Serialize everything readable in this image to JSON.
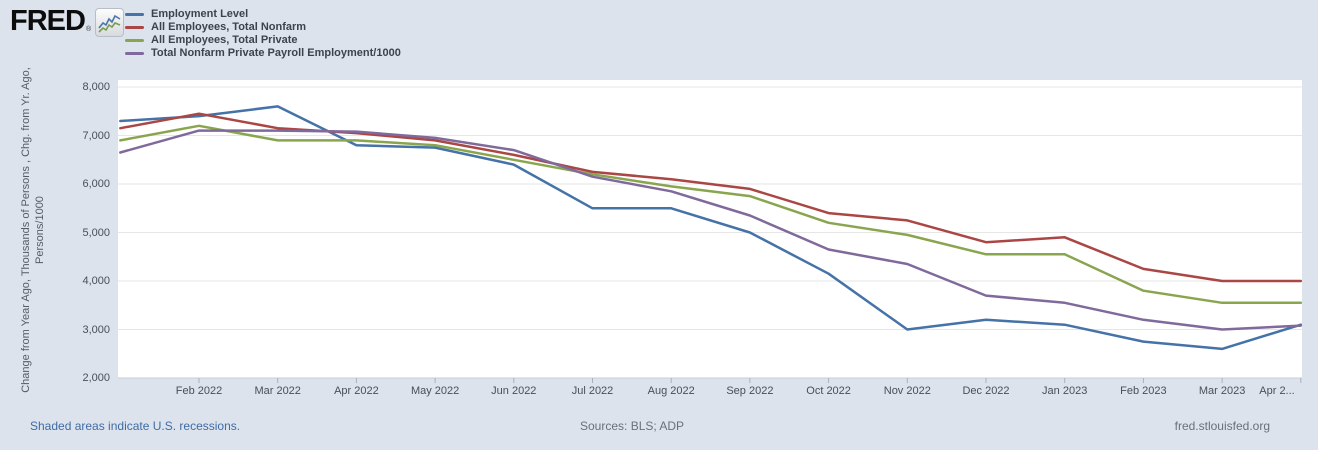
{
  "logo": {
    "text": "FRED",
    "registered_mark": "®"
  },
  "y_axis": {
    "label": "Change from Year Ago, Thousands of Persons , Chg. from Yr. Ago, Persons/1000",
    "tick_labels": [
      "8,000",
      "7,000",
      "6,000",
      "5,000",
      "4,000",
      "3,000",
      "2,000"
    ]
  },
  "x_axis": {
    "tick_labels": [
      "Feb 2022",
      "Mar 2022",
      "Apr 2022",
      "May 2022",
      "Jun 2022",
      "Jul 2022",
      "Aug 2022",
      "Sep 2022",
      "Oct 2022",
      "Nov 2022",
      "Dec 2022",
      "Jan 2023",
      "Feb 2023",
      "Mar 2023",
      "Apr 2..."
    ]
  },
  "footer": {
    "recession_note": "Shaded areas indicate U.S. recessions.",
    "sources": "Sources: BLS; ADP",
    "site_url": "fred.stlouisfed.org"
  },
  "chart_data": {
    "type": "line",
    "x": [
      "Jan 2022",
      "Feb 2022",
      "Mar 2022",
      "Apr 2022",
      "May 2022",
      "Jun 2022",
      "Jul 2022",
      "Aug 2022",
      "Sep 2022",
      "Oct 2022",
      "Nov 2022",
      "Dec 2022",
      "Jan 2023",
      "Feb 2023",
      "Mar 2023",
      "Apr 2023"
    ],
    "series": [
      {
        "name": "Employment Level",
        "color": "#4572a7",
        "values": [
          7300,
          7400,
          7600,
          6800,
          6750,
          6400,
          5500,
          5500,
          5000,
          4150,
          3000,
          3200,
          3100,
          2750,
          2600,
          3100
        ]
      },
      {
        "name": "All Employees, Total Nonfarm",
        "color": "#aa4643",
        "values": [
          7150,
          7450,
          7150,
          7050,
          6900,
          6600,
          6250,
          6100,
          5900,
          5400,
          5250,
          4800,
          4900,
          4250,
          4000,
          4000
        ]
      },
      {
        "name": "All Employees, Total Private",
        "color": "#89a54e",
        "values": [
          6900,
          7200,
          6900,
          6900,
          6800,
          6500,
          6200,
          5950,
          5750,
          5200,
          4950,
          4550,
          4550,
          3800,
          3550,
          3550
        ]
      },
      {
        "name": "Total Nonfarm Private Payroll Employment/1000",
        "color": "#80699b",
        "values": [
          6650,
          7100,
          7100,
          7080,
          6950,
          6700,
          6150,
          5850,
          5350,
          4650,
          4350,
          3700,
          3550,
          3200,
          3000,
          3080
        ]
      }
    ],
    "ylabel": "Change from Year Ago, Thousands of Persons , Chg. from Yr. Ago, Persons/1000",
    "ylim": [
      2000,
      8000
    ],
    "y_tick_step": 1000,
    "grid": "horizontal",
    "legend_position": "top-left"
  }
}
